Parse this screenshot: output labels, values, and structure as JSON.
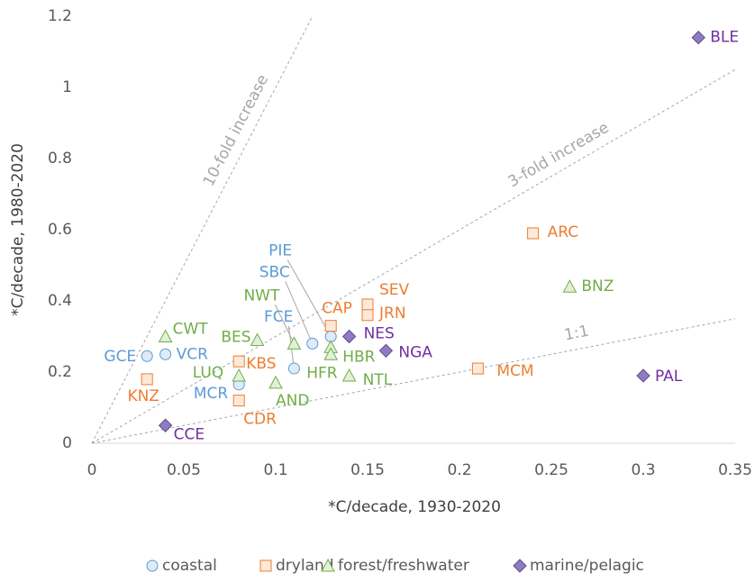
{
  "chart_data": {
    "type": "scatter",
    "x_label": "*C/decade, 1930-2020",
    "y_label": "*C/decade, 1980-2020",
    "xlim": [
      0,
      0.35
    ],
    "xticks": [
      0,
      0.05,
      0.1,
      0.15,
      0.2,
      0.25,
      0.3,
      0.35
    ],
    "ylim": [
      0,
      1.2
    ],
    "yticks": [
      0,
      0.2,
      0.4,
      0.6,
      0.8,
      1,
      1.2
    ],
    "legend": "bottom",
    "reference_lines": [
      {
        "label": "1:1",
        "slope": 1
      },
      {
        "label": "3-fold increase",
        "slope": 3
      },
      {
        "label": "10-fold increase",
        "slope": 10
      }
    ],
    "series": [
      {
        "name": "coastal",
        "color": "#5b9bd5",
        "marker": "circle",
        "labels": [
          "GCE",
          "VCR",
          "MCR",
          "FCE",
          "SBC",
          "PIE"
        ],
        "x": [
          0.03,
          0.04,
          0.08,
          0.11,
          0.12,
          0.13
        ],
        "values": [
          0.245,
          0.25,
          0.165,
          0.21,
          0.28,
          0.3
        ]
      },
      {
        "name": "dryland",
        "color": "#ed7d31",
        "marker": "square",
        "labels": [
          "KNZ",
          "KBS",
          "CDR",
          "CAP",
          "SEV",
          "JRN",
          "ARC",
          "MCM"
        ],
        "x": [
          0.03,
          0.08,
          0.08,
          0.13,
          0.15,
          0.15,
          0.24,
          0.21
        ],
        "values": [
          0.18,
          0.23,
          0.12,
          0.33,
          0.39,
          0.36,
          0.59,
          0.21
        ]
      },
      {
        "name": "forest/freshwater",
        "color": "#70ad47",
        "marker": "triangle",
        "labels": [
          "CWT",
          "BES",
          "LUQ",
          "NWT",
          "AND",
          "HBR",
          "HFR",
          "NTL",
          "BNZ"
        ],
        "x": [
          0.04,
          0.09,
          0.08,
          0.11,
          0.1,
          0.13,
          0.13,
          0.14,
          0.26
        ],
        "values": [
          0.3,
          0.29,
          0.19,
          0.28,
          0.17,
          0.27,
          0.25,
          0.19,
          0.44
        ]
      },
      {
        "name": "marine/pelagic",
        "color": "#7030a0",
        "marker": "diamond",
        "labels": [
          "BLE",
          "NES",
          "NGA",
          "PAL",
          "CCE"
        ],
        "x": [
          0.33,
          0.14,
          0.16,
          0.3,
          0.04
        ],
        "values": [
          1.14,
          0.3,
          0.26,
          0.19,
          0.05
        ]
      }
    ]
  }
}
